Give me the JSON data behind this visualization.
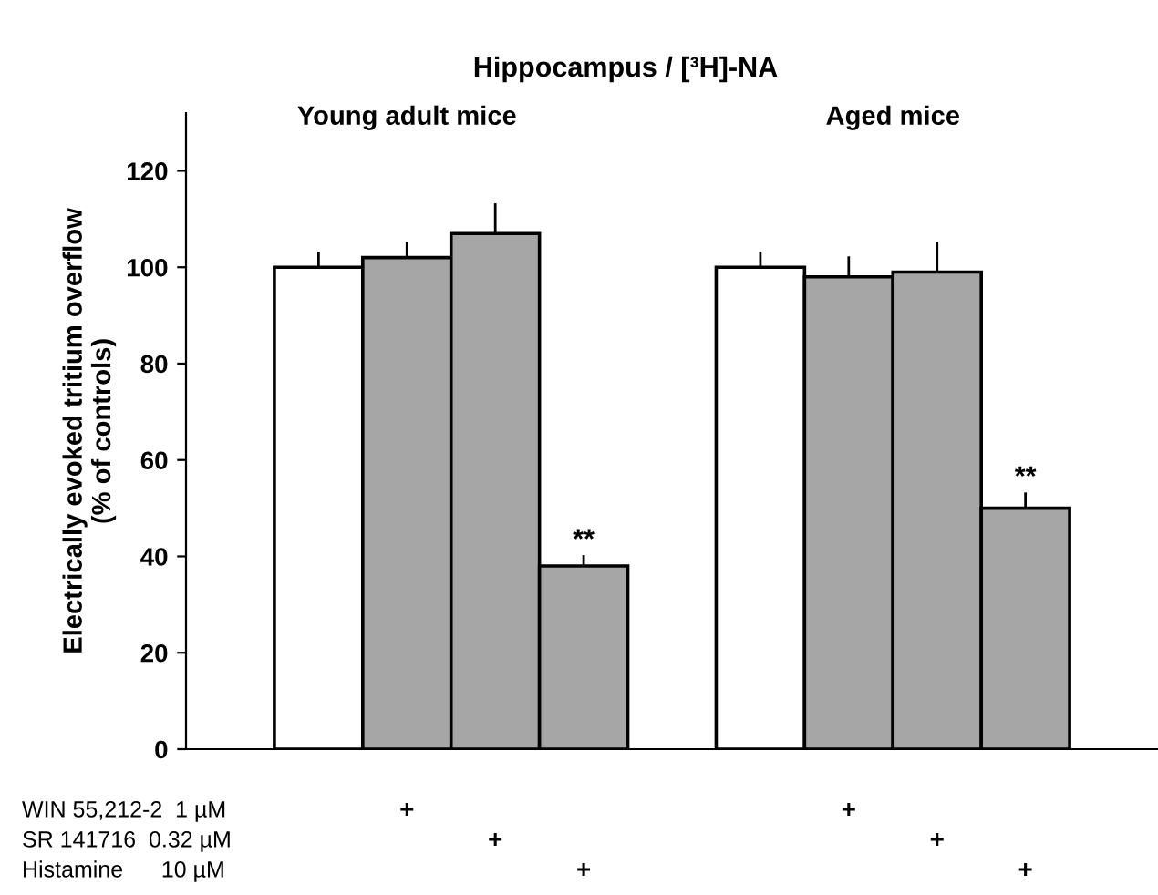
{
  "chart_data": {
    "type": "bar",
    "title": "Hippocampus / [³H]-NA",
    "ylabel": "Electrically evoked tritium overflow\n(% of controls)",
    "categories": [
      null,
      null,
      null,
      null,
      null,
      null,
      null,
      null,
      null,
      null,
      null
    ],
    "values": [
      null,
      100,
      102,
      107,
      38,
      null,
      100,
      98,
      99,
      50,
      null
    ],
    "errors": [
      null,
      3,
      3,
      6,
      2,
      null,
      3,
      4,
      6,
      3,
      null
    ],
    "colors": [
      "#ffffff",
      "#ffffff",
      "#a6a6a6",
      "#a6a6a6",
      "#a6a6a6",
      "#ffffff",
      "#ffffff",
      "#a6a6a6",
      "#a6a6a6",
      "#a6a6a6",
      "#ffffff"
    ],
    "ylim": [
      0,
      132
    ],
    "yticks": [
      0,
      20,
      40,
      60,
      80,
      100,
      120
    ],
    "grid": false,
    "legend": false,
    "annotations": [
      "Young adult mice",
      "Aged mice",
      "**",
      "**",
      "WIN 55,212-2  1 µM",
      "+",
      "+",
      "SR 141716  0.32 µM",
      "+",
      "+",
      "Histamine      10 µM",
      "+",
      "+"
    ]
  }
}
